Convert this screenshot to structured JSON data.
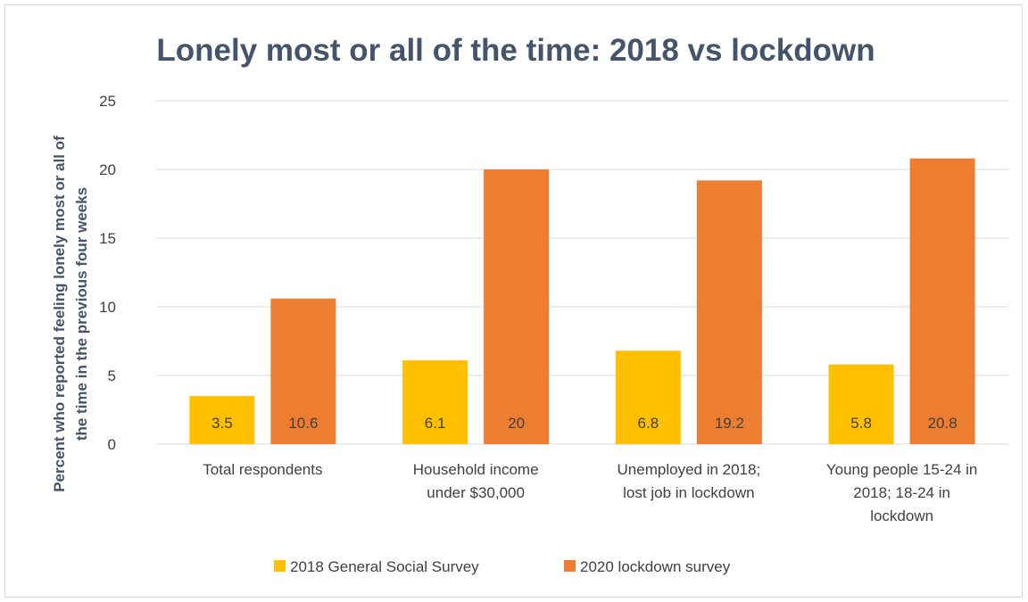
{
  "chart_data": {
    "type": "bar",
    "title": "Lonely most or all of the time: 2018 vs lockdown",
    "ylabel_lines": [
      "Percent who reported feeling lonely most or all of",
      "the time in the previous four weeks"
    ],
    "xlabel": "",
    "ylim": [
      0,
      25
    ],
    "yticks": [
      0,
      5,
      10,
      15,
      20,
      25
    ],
    "grid": true,
    "legend_position": "bottom",
    "categories": [
      [
        "Total respondents"
      ],
      [
        "Household income",
        "under $30,000"
      ],
      [
        "Unemployed in 2018;",
        "lost job in lockdown"
      ],
      [
        "Young people 15-24 in",
        "2018; 18-24 in",
        "lockdown"
      ]
    ],
    "series": [
      {
        "name": "2018 General Social Survey",
        "color": "#ffc000",
        "values": [
          3.5,
          6.1,
          6.8,
          5.8
        ]
      },
      {
        "name": "2020 lockdown survey",
        "color": "#ed7d31",
        "values": [
          10.6,
          20,
          19.2,
          20.8
        ]
      }
    ]
  }
}
